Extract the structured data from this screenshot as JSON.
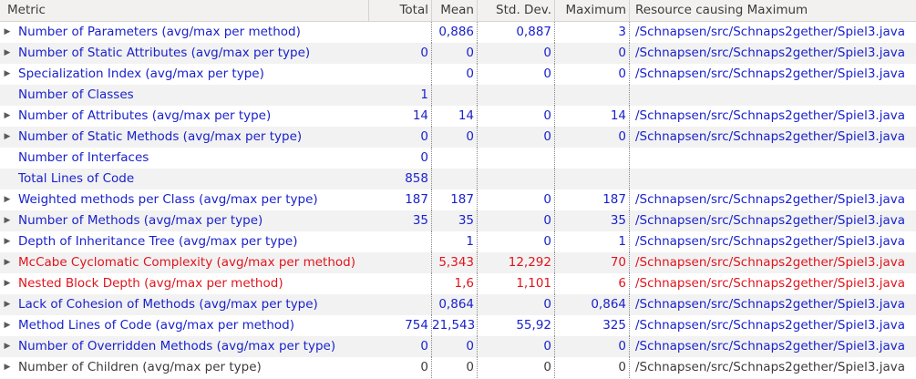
{
  "colors": {
    "normal": "#1a22cc",
    "warning": "#e0151d",
    "plain": "#3c3c3c"
  },
  "icons": {
    "expander": "triangle-right-icon"
  },
  "headers": {
    "metric": "Metric",
    "total": "Total",
    "mean": "Mean",
    "std_dev": "Std. Dev.",
    "maximum": "Maximum",
    "resource": "Resource causing Maximum"
  },
  "rows": [
    {
      "metric": "Number of Parameters (avg/max per method)",
      "total": "",
      "mean": "0,886",
      "std_dev": "0,887",
      "maximum": "3",
      "resource": "/Schnapsen/src/Schnaps2gether/Spiel3.java",
      "expandable": true,
      "status": "normal"
    },
    {
      "metric": "Number of Static Attributes (avg/max per type)",
      "total": "0",
      "mean": "0",
      "std_dev": "0",
      "maximum": "0",
      "resource": "/Schnapsen/src/Schnaps2gether/Spiel3.java",
      "expandable": true,
      "status": "normal"
    },
    {
      "metric": "Specialization Index (avg/max per type)",
      "total": "",
      "mean": "0",
      "std_dev": "0",
      "maximum": "0",
      "resource": "/Schnapsen/src/Schnaps2gether/Spiel3.java",
      "expandable": true,
      "status": "normal"
    },
    {
      "metric": "Number of Classes",
      "total": "1",
      "mean": "",
      "std_dev": "",
      "maximum": "",
      "resource": "",
      "expandable": false,
      "status": "normal"
    },
    {
      "metric": "Number of Attributes (avg/max per type)",
      "total": "14",
      "mean": "14",
      "std_dev": "0",
      "maximum": "14",
      "resource": "/Schnapsen/src/Schnaps2gether/Spiel3.java",
      "expandable": true,
      "status": "normal"
    },
    {
      "metric": "Number of Static Methods (avg/max per type)",
      "total": "0",
      "mean": "0",
      "std_dev": "0",
      "maximum": "0",
      "resource": "/Schnapsen/src/Schnaps2gether/Spiel3.java",
      "expandable": true,
      "status": "normal"
    },
    {
      "metric": "Number of Interfaces",
      "total": "0",
      "mean": "",
      "std_dev": "",
      "maximum": "",
      "resource": "",
      "expandable": false,
      "status": "normal"
    },
    {
      "metric": "Total Lines of Code",
      "total": "858",
      "mean": "",
      "std_dev": "",
      "maximum": "",
      "resource": "",
      "expandable": false,
      "status": "normal"
    },
    {
      "metric": "Weighted methods per Class (avg/max per type)",
      "total": "187",
      "mean": "187",
      "std_dev": "0",
      "maximum": "187",
      "resource": "/Schnapsen/src/Schnaps2gether/Spiel3.java",
      "expandable": true,
      "status": "normal"
    },
    {
      "metric": "Number of Methods (avg/max per type)",
      "total": "35",
      "mean": "35",
      "std_dev": "0",
      "maximum": "35",
      "resource": "/Schnapsen/src/Schnaps2gether/Spiel3.java",
      "expandable": true,
      "status": "normal"
    },
    {
      "metric": "Depth of Inheritance Tree (avg/max per type)",
      "total": "",
      "mean": "1",
      "std_dev": "0",
      "maximum": "1",
      "resource": "/Schnapsen/src/Schnaps2gether/Spiel3.java",
      "expandable": true,
      "status": "normal"
    },
    {
      "metric": "McCabe Cyclomatic Complexity (avg/max per method)",
      "total": "",
      "mean": "5,343",
      "std_dev": "12,292",
      "maximum": "70",
      "resource": "/Schnapsen/src/Schnaps2gether/Spiel3.java",
      "expandable": true,
      "status": "warning"
    },
    {
      "metric": "Nested Block Depth (avg/max per method)",
      "total": "",
      "mean": "1,6",
      "std_dev": "1,101",
      "maximum": "6",
      "resource": "/Schnapsen/src/Schnaps2gether/Spiel3.java",
      "expandable": true,
      "status": "warning"
    },
    {
      "metric": "Lack of Cohesion of Methods (avg/max per type)",
      "total": "",
      "mean": "0,864",
      "std_dev": "0",
      "maximum": "0,864",
      "resource": "/Schnapsen/src/Schnaps2gether/Spiel3.java",
      "expandable": true,
      "status": "normal"
    },
    {
      "metric": "Method Lines of Code (avg/max per method)",
      "total": "754",
      "mean": "21,543",
      "std_dev": "55,92",
      "maximum": "325",
      "resource": "/Schnapsen/src/Schnaps2gether/Spiel3.java",
      "expandable": true,
      "status": "normal"
    },
    {
      "metric": "Number of Overridden Methods (avg/max per type)",
      "total": "0",
      "mean": "0",
      "std_dev": "0",
      "maximum": "0",
      "resource": "/Schnapsen/src/Schnaps2gether/Spiel3.java",
      "expandable": true,
      "status": "normal"
    },
    {
      "metric": "Number of Children (avg/max per type)",
      "total": "0",
      "mean": "0",
      "std_dev": "0",
      "maximum": "0",
      "resource": "/Schnapsen/src/Schnaps2gether/Spiel3.java",
      "expandable": true,
      "status": "plain"
    }
  ]
}
